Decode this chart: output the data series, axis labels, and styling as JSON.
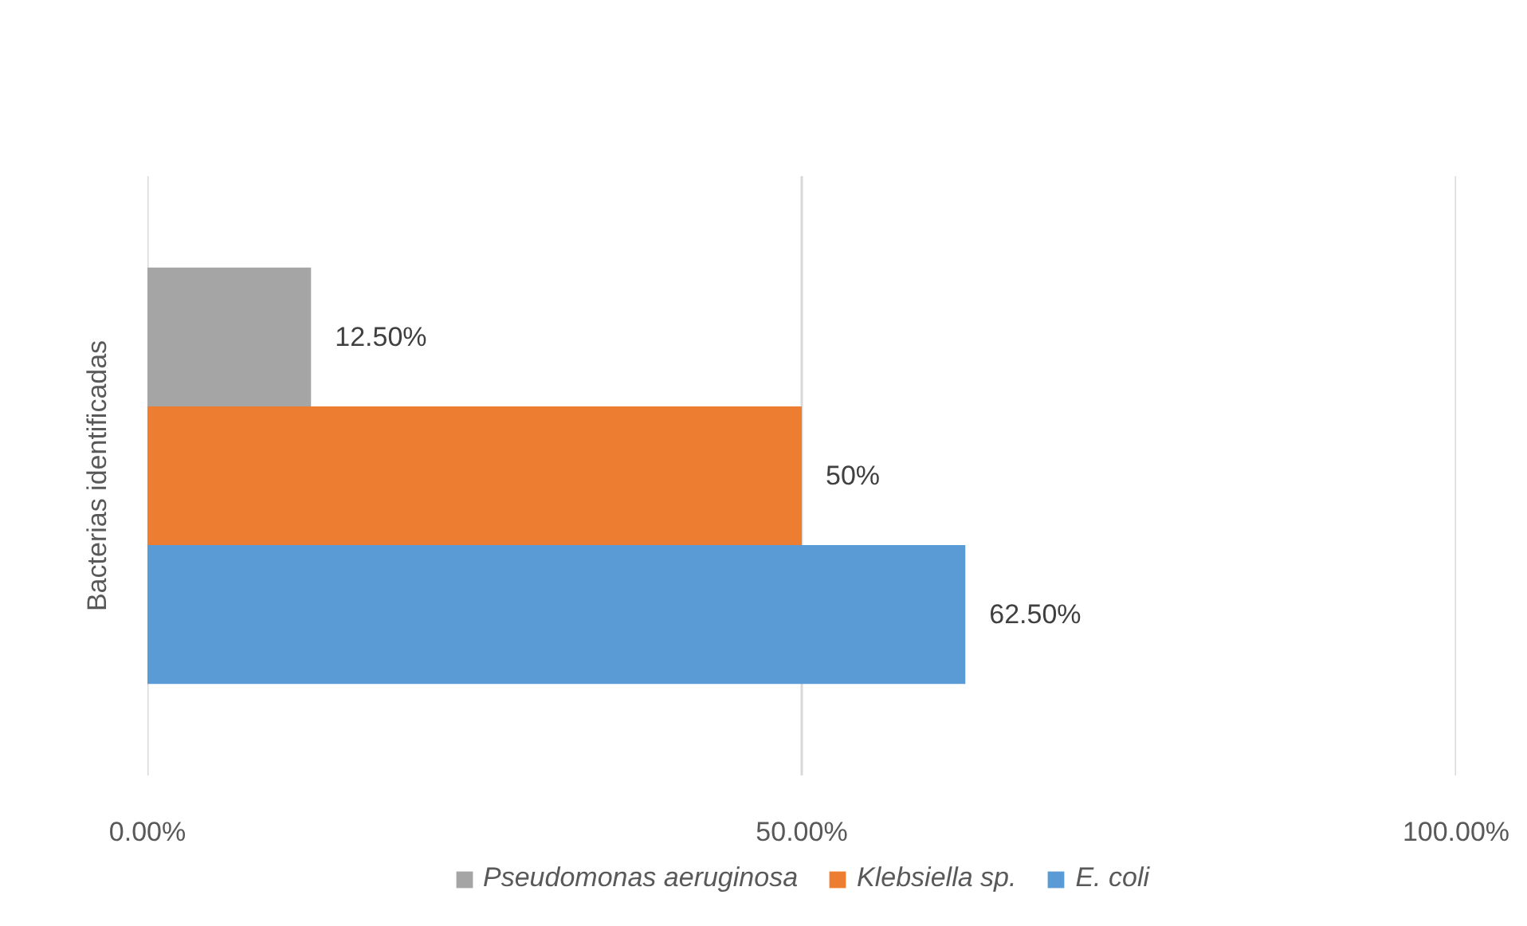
{
  "chart_data": {
    "type": "bar",
    "orientation": "horizontal",
    "ylabel": "Bacterias identificadas",
    "categories": [
      null
    ],
    "series": [
      {
        "name": "Pseudomonas aeruginosa",
        "color": "#a5a5a5",
        "values": [
          12.5
        ],
        "value_labels": [
          "12.50%"
        ]
      },
      {
        "name": "Klebsiella sp.",
        "color": "#ed7d31",
        "values": [
          50
        ],
        "value_labels": [
          "50%"
        ]
      },
      {
        "name": "E. coli",
        "color": "#5b9bd5",
        "values": [
          62.5
        ],
        "value_labels": [
          "62.50%"
        ]
      }
    ],
    "xlim": [
      0,
      100
    ],
    "xticks": [
      {
        "value": 0,
        "label": "0.00%"
      },
      {
        "value": 50,
        "label": "50.00%"
      },
      {
        "value": 100,
        "label": "100.00%"
      }
    ],
    "grid": "x",
    "legend": "bottom"
  }
}
